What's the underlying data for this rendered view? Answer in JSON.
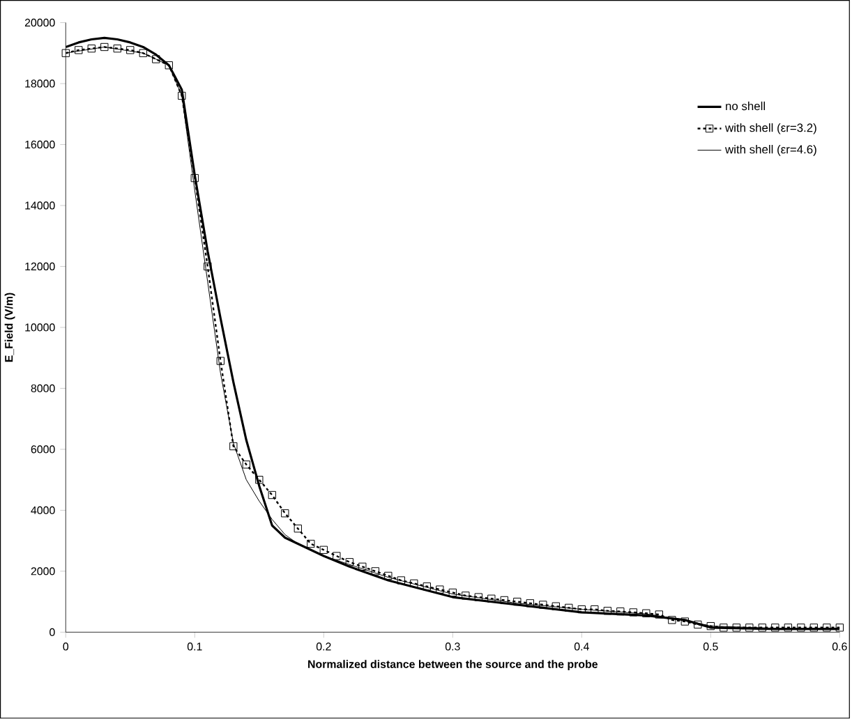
{
  "chart_data": {
    "type": "line",
    "xlabel": "Normalized distance between the source and the probe",
    "ylabel": "E_Field (V/m)",
    "xlim": [
      0,
      0.6
    ],
    "ylim": [
      0,
      20000
    ],
    "xticks": [
      0,
      0.1,
      0.2,
      0.3,
      0.4,
      0.5,
      0.6
    ],
    "yticks": [
      0,
      2000,
      4000,
      6000,
      8000,
      10000,
      12000,
      14000,
      16000,
      18000,
      20000
    ],
    "grid": false,
    "legend": "top right",
    "series": [
      {
        "name": "no shell",
        "color": "#000000",
        "marker": "none",
        "line_style": "solid",
        "x": [
          0,
          0.01,
          0.02,
          0.03,
          0.04,
          0.05,
          0.06,
          0.07,
          0.08,
          0.09,
          0.1,
          0.11,
          0.12,
          0.13,
          0.14,
          0.15,
          0.16,
          0.17,
          0.18,
          0.2,
          0.22,
          0.25,
          0.3,
          0.35,
          0.4,
          0.45,
          0.48,
          0.5,
          0.55,
          0.6
        ],
        "values": [
          19200,
          19350,
          19450,
          19500,
          19450,
          19350,
          19200,
          18950,
          18600,
          17800,
          15000,
          12500,
          10300,
          8200,
          6300,
          4800,
          3500,
          3100,
          2900,
          2500,
          2150,
          1700,
          1150,
          900,
          650,
          550,
          400,
          150,
          100,
          100
        ]
      },
      {
        "name": "with shell (εr=3.2)",
        "color": "#000000",
        "marker": "square",
        "line_style": "dotted",
        "x": [
          0,
          0.01,
          0.02,
          0.03,
          0.04,
          0.05,
          0.06,
          0.07,
          0.08,
          0.09,
          0.1,
          0.11,
          0.12,
          0.13,
          0.14,
          0.15,
          0.16,
          0.17,
          0.18,
          0.19,
          0.2,
          0.21,
          0.22,
          0.23,
          0.24,
          0.25,
          0.26,
          0.27,
          0.28,
          0.29,
          0.3,
          0.31,
          0.32,
          0.33,
          0.34,
          0.35,
          0.36,
          0.37,
          0.38,
          0.39,
          0.4,
          0.41,
          0.42,
          0.43,
          0.44,
          0.45,
          0.46,
          0.47,
          0.48,
          0.49,
          0.5,
          0.51,
          0.52,
          0.53,
          0.54,
          0.55,
          0.56,
          0.57,
          0.58,
          0.59,
          0.6
        ],
        "values": [
          19000,
          19100,
          19150,
          19200,
          19150,
          19100,
          19000,
          18800,
          18600,
          17600,
          14900,
          12000,
          8900,
          6100,
          5500,
          5000,
          4500,
          3900,
          3400,
          2900,
          2700,
          2500,
          2300,
          2150,
          2000,
          1850,
          1700,
          1600,
          1500,
          1400,
          1300,
          1200,
          1150,
          1100,
          1050,
          1000,
          950,
          900,
          850,
          800,
          750,
          750,
          700,
          680,
          650,
          620,
          580,
          400,
          350,
          250,
          200,
          150,
          150,
          150,
          150,
          150,
          150,
          150,
          150,
          150,
          150
        ]
      },
      {
        "name": "with shell (εr=4.6)",
        "color": "#000000",
        "marker": "none",
        "line_style": "solid",
        "x": [
          0,
          0.03,
          0.06,
          0.08,
          0.09,
          0.1,
          0.11,
          0.12,
          0.13,
          0.14,
          0.15,
          0.16,
          0.17,
          0.18,
          0.2,
          0.25,
          0.3,
          0.35,
          0.4,
          0.45,
          0.48,
          0.5,
          0.55,
          0.6
        ],
        "values": [
          19000,
          19200,
          19000,
          18600,
          17600,
          14500,
          11500,
          8500,
          6200,
          5000,
          4300,
          3700,
          3200,
          2900,
          2500,
          1800,
          1250,
          950,
          750,
          600,
          400,
          200,
          130,
          130
        ]
      }
    ]
  }
}
